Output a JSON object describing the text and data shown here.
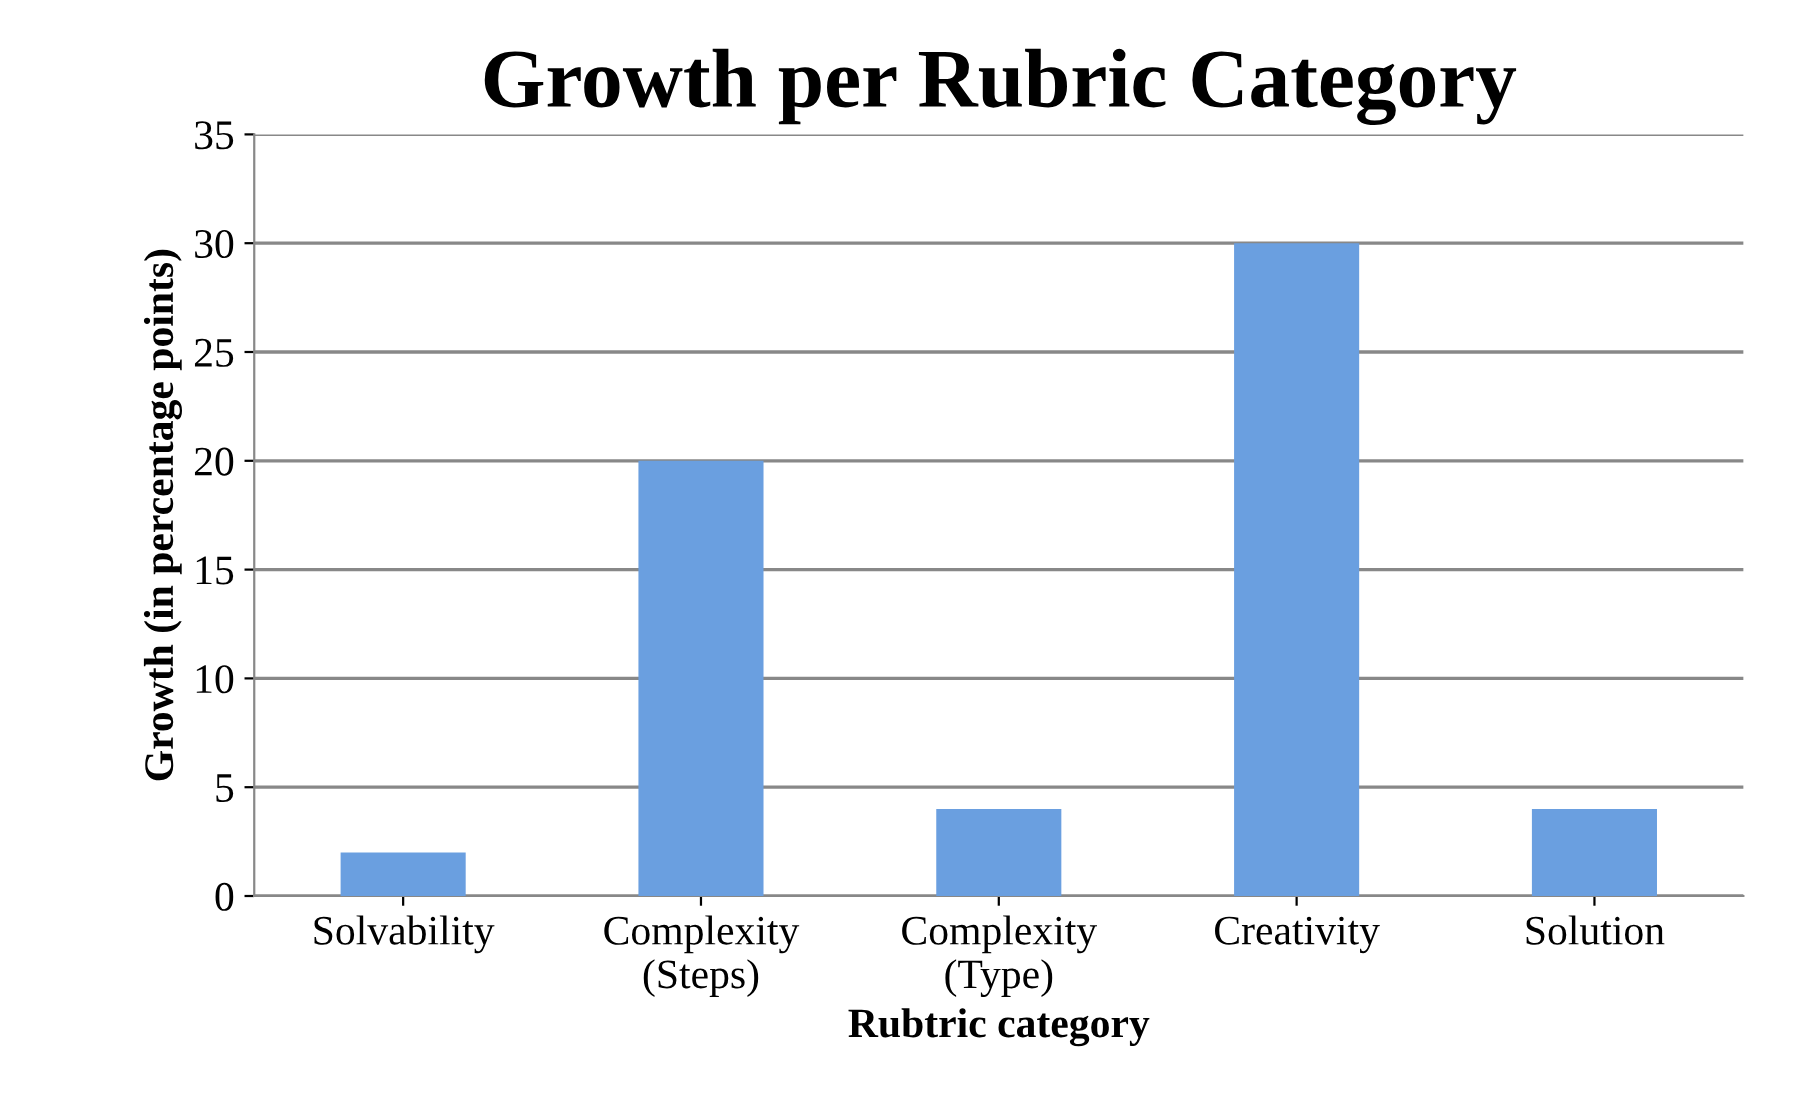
{
  "chart_data": {
    "type": "bar",
    "title": "Growth per Rubric Category",
    "xlabel": "Rubtric category",
    "ylabel": "Growth (in percentage points)",
    "categories": [
      "Solvability",
      "Complexity\n(Steps)",
      "Complexity\n(Type)",
      "Creativity",
      "Solution"
    ],
    "values": [
      2,
      20,
      4,
      30,
      4
    ],
    "color": "#6a9fe0",
    "ylim": [
      0,
      35
    ],
    "yticks": [
      0,
      5,
      10,
      15,
      20,
      25,
      30,
      35
    ],
    "grid": "y",
    "legend": false
  }
}
